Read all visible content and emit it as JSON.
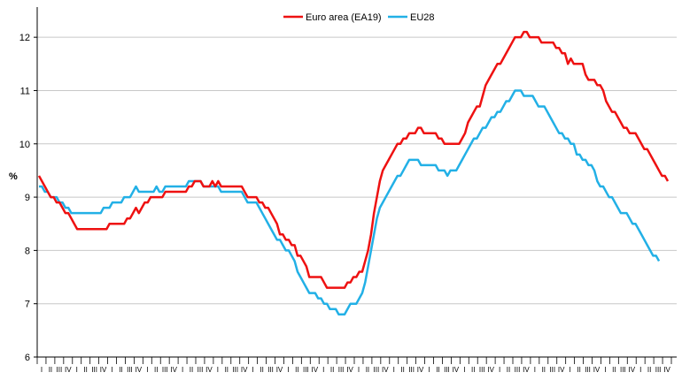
{
  "chart_data": {
    "type": "line",
    "title": "",
    "xlabel": "",
    "ylabel": "%",
    "ylim": [
      6,
      12.5
    ],
    "yticks": [
      6,
      7,
      8,
      9,
      10,
      11,
      12
    ],
    "grid": true,
    "legend_position": "top",
    "x_quarter_labels": [
      "I",
      "II",
      "III",
      "IV"
    ],
    "series": [
      {
        "name": "Euro area (EA19)",
        "color": "#ee1111",
        "values": [
          9.4,
          9.3,
          9.2,
          9.1,
          9.0,
          9.0,
          8.9,
          8.9,
          8.8,
          8.7,
          8.7,
          8.6,
          8.5,
          8.4,
          8.4,
          8.4,
          8.4,
          8.4,
          8.4,
          8.4,
          8.4,
          8.4,
          8.4,
          8.4,
          8.5,
          8.5,
          8.5,
          8.5,
          8.5,
          8.5,
          8.6,
          8.6,
          8.7,
          8.8,
          8.7,
          8.8,
          8.9,
          8.9,
          9.0,
          9.0,
          9.0,
          9.0,
          9.0,
          9.1,
          9.1,
          9.1,
          9.1,
          9.1,
          9.1,
          9.1,
          9.1,
          9.2,
          9.2,
          9.3,
          9.3,
          9.3,
          9.2,
          9.2,
          9.2,
          9.3,
          9.2,
          9.3,
          9.2,
          9.2,
          9.2,
          9.2,
          9.2,
          9.2,
          9.2,
          9.2,
          9.1,
          9.0,
          9.0,
          9.0,
          9.0,
          8.9,
          8.9,
          8.8,
          8.8,
          8.7,
          8.6,
          8.5,
          8.3,
          8.3,
          8.2,
          8.2,
          8.1,
          8.1,
          7.9,
          7.9,
          7.8,
          7.7,
          7.5,
          7.5,
          7.5,
          7.5,
          7.5,
          7.4,
          7.3,
          7.3,
          7.3,
          7.3,
          7.3,
          7.3,
          7.3,
          7.4,
          7.4,
          7.5,
          7.5,
          7.6,
          7.6,
          7.8,
          8.0,
          8.3,
          8.7,
          9.0,
          9.3,
          9.5,
          9.6,
          9.7,
          9.8,
          9.9,
          10.0,
          10.0,
          10.1,
          10.1,
          10.2,
          10.2,
          10.2,
          10.3,
          10.3,
          10.2,
          10.2,
          10.2,
          10.2,
          10.2,
          10.1,
          10.1,
          10.0,
          10.0,
          10.0,
          10.0,
          10.0,
          10.0,
          10.1,
          10.2,
          10.4,
          10.5,
          10.6,
          10.7,
          10.7,
          10.9,
          11.1,
          11.2,
          11.3,
          11.4,
          11.5,
          11.5,
          11.6,
          11.7,
          11.8,
          11.9,
          12.0,
          12.0,
          12.0,
          12.1,
          12.1,
          12.0,
          12.0,
          12.0,
          12.0,
          11.9,
          11.9,
          11.9,
          11.9,
          11.9,
          11.8,
          11.8,
          11.7,
          11.7,
          11.5,
          11.6,
          11.5,
          11.5,
          11.5,
          11.5,
          11.3,
          11.2,
          11.2,
          11.2,
          11.1,
          11.1,
          11.0,
          10.8,
          10.7,
          10.6,
          10.6,
          10.5,
          10.4,
          10.3,
          10.3,
          10.2,
          10.2,
          10.2,
          10.1,
          10.0,
          9.9,
          9.9,
          9.8,
          9.7,
          9.6,
          9.5,
          9.4,
          9.4,
          9.3
        ]
      },
      {
        "name": "EU28",
        "color": "#22b0e6",
        "values": [
          9.2,
          9.2,
          9.1,
          9.1,
          9.0,
          9.0,
          9.0,
          8.9,
          8.9,
          8.8,
          8.8,
          8.7,
          8.7,
          8.7,
          8.7,
          8.7,
          8.7,
          8.7,
          8.7,
          8.7,
          8.7,
          8.7,
          8.8,
          8.8,
          8.8,
          8.9,
          8.9,
          8.9,
          8.9,
          9.0,
          9.0,
          9.0,
          9.1,
          9.2,
          9.1,
          9.1,
          9.1,
          9.1,
          9.1,
          9.1,
          9.2,
          9.1,
          9.1,
          9.2,
          9.2,
          9.2,
          9.2,
          9.2,
          9.2,
          9.2,
          9.2,
          9.3,
          9.3,
          9.3,
          9.3,
          9.3,
          9.2,
          9.2,
          9.2,
          9.2,
          9.2,
          9.2,
          9.1,
          9.1,
          9.1,
          9.1,
          9.1,
          9.1,
          9.1,
          9.1,
          9.0,
          8.9,
          8.9,
          8.9,
          8.9,
          8.8,
          8.7,
          8.6,
          8.5,
          8.4,
          8.3,
          8.2,
          8.2,
          8.1,
          8.0,
          8.0,
          7.9,
          7.8,
          7.6,
          7.5,
          7.4,
          7.3,
          7.2,
          7.2,
          7.2,
          7.1,
          7.1,
          7.0,
          7.0,
          6.9,
          6.9,
          6.9,
          6.8,
          6.8,
          6.8,
          6.9,
          7.0,
          7.0,
          7.0,
          7.1,
          7.2,
          7.4,
          7.7,
          8.0,
          8.3,
          8.6,
          8.8,
          8.9,
          9.0,
          9.1,
          9.2,
          9.3,
          9.4,
          9.4,
          9.5,
          9.6,
          9.7,
          9.7,
          9.7,
          9.7,
          9.6,
          9.6,
          9.6,
          9.6,
          9.6,
          9.6,
          9.5,
          9.5,
          9.5,
          9.4,
          9.5,
          9.5,
          9.5,
          9.6,
          9.7,
          9.8,
          9.9,
          10.0,
          10.1,
          10.1,
          10.2,
          10.3,
          10.3,
          10.4,
          10.5,
          10.5,
          10.6,
          10.6,
          10.7,
          10.8,
          10.8,
          10.9,
          11.0,
          11.0,
          11.0,
          10.9,
          10.9,
          10.9,
          10.9,
          10.8,
          10.7,
          10.7,
          10.7,
          10.6,
          10.5,
          10.4,
          10.3,
          10.2,
          10.2,
          10.1,
          10.1,
          10.0,
          10.0,
          9.8,
          9.8,
          9.7,
          9.7,
          9.6,
          9.6,
          9.5,
          9.3,
          9.2,
          9.2,
          9.1,
          9.0,
          9.0,
          8.9,
          8.8,
          8.7,
          8.7,
          8.7,
          8.6,
          8.5,
          8.5,
          8.4,
          8.3,
          8.2,
          8.1,
          8.0,
          7.9,
          7.9,
          7.8
        ]
      }
    ]
  }
}
